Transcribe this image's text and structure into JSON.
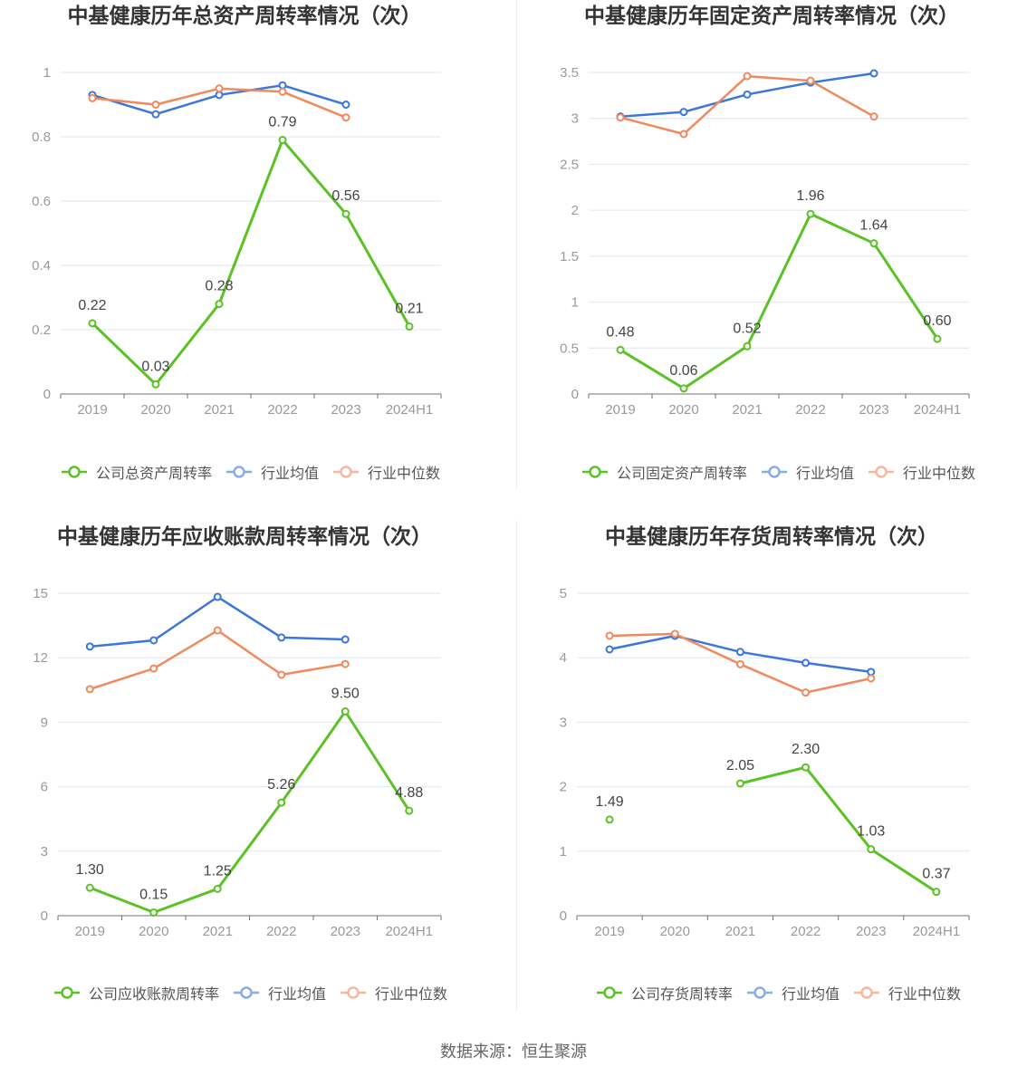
{
  "footer": {
    "source": "数据来源：恒生聚源"
  },
  "chart_data": [
    {
      "type": "line",
      "title": "中基健康历年总资产周转率情况（次）",
      "categories": [
        "2019",
        "2020",
        "2021",
        "2022",
        "2023",
        "2024H1"
      ],
      "ylim": [
        0,
        1
      ],
      "yticks": [
        "0",
        "0.2",
        "0.4",
        "0.6",
        "0.8",
        "1"
      ],
      "grid": true,
      "legend_position": "bottom",
      "series": [
        {
          "name": "公司总资产周转率",
          "color": "#5bc225",
          "values": [
            0.22,
            0.03,
            0.28,
            0.79,
            0.56,
            0.21
          ],
          "labels": [
            "0.22",
            "0.03",
            "0.28",
            "0.79",
            "0.56",
            "0.21"
          ]
        },
        {
          "name": "行业均值",
          "color": "#3c75dc",
          "values": [
            0.93,
            0.87,
            0.93,
            0.96,
            0.9,
            null
          ]
        },
        {
          "name": "行业中位数",
          "color": "#f0895c",
          "values": [
            0.92,
            0.9,
            0.95,
            0.94,
            0.86,
            null
          ]
        }
      ]
    },
    {
      "type": "line",
      "title": "中基健康历年固定资产周转率情况（次）",
      "categories": [
        "2019",
        "2020",
        "2021",
        "2022",
        "2023",
        "2024H1"
      ],
      "ylim": [
        0,
        3.5
      ],
      "yticks": [
        "0",
        "0.5",
        "1",
        "1.5",
        "2",
        "2.5",
        "3",
        "3.5"
      ],
      "grid": true,
      "legend_position": "bottom",
      "series": [
        {
          "name": "公司固定资产周转率",
          "color": "#5bc225",
          "values": [
            0.48,
            0.06,
            0.52,
            1.96,
            1.64,
            0.6
          ],
          "labels": [
            "0.48",
            "0.06",
            "0.52",
            "1.96",
            "1.64",
            "0.60"
          ]
        },
        {
          "name": "行业均值",
          "color": "#3c75dc",
          "values": [
            3.02,
            3.07,
            3.26,
            3.39,
            3.49,
            null
          ]
        },
        {
          "name": "行业中位数",
          "color": "#f0895c",
          "values": [
            3.01,
            2.83,
            3.46,
            3.41,
            3.02,
            null
          ]
        }
      ]
    },
    {
      "type": "line",
      "title": "中基健康历年应收账款周转率情况（次）",
      "categories": [
        "2019",
        "2020",
        "2021",
        "2022",
        "2023",
        "2024H1"
      ],
      "ylim": [
        0,
        15
      ],
      "yticks": [
        "0",
        "3",
        "6",
        "9",
        "12",
        "15"
      ],
      "grid": true,
      "legend_position": "bottom",
      "series": [
        {
          "name": "公司应收账款周转率",
          "color": "#5bc225",
          "values": [
            1.3,
            0.15,
            1.25,
            5.26,
            9.5,
            4.88
          ],
          "labels": [
            "1.30",
            "0.15",
            "1.25",
            "5.26",
            "9.50",
            "4.88"
          ]
        },
        {
          "name": "行业均值",
          "color": "#3c75dc",
          "values": [
            12.52,
            12.81,
            14.83,
            12.94,
            12.85,
            null
          ]
        },
        {
          "name": "行业中位数",
          "color": "#f0895c",
          "values": [
            10.54,
            11.5,
            13.27,
            11.21,
            11.71,
            null
          ]
        }
      ]
    },
    {
      "type": "line",
      "title": "中基健康历年存货周转率情况（次）",
      "categories": [
        "2019",
        "2020",
        "2021",
        "2022",
        "2023",
        "2024H1"
      ],
      "ylim": [
        0,
        5
      ],
      "yticks": [
        "0",
        "1",
        "2",
        "3",
        "4",
        "5"
      ],
      "grid": true,
      "legend_position": "bottom",
      "series": [
        {
          "name": "公司存货周转率",
          "color": "#5bc225",
          "values": [
            1.49,
            null,
            2.05,
            2.3,
            1.03,
            0.37
          ],
          "labels": [
            "1.49",
            null,
            "2.05",
            "2.30",
            "1.03",
            "0.37"
          ]
        },
        {
          "name": "行业均值",
          "color": "#3c75dc",
          "values": [
            4.13,
            4.34,
            4.09,
            3.92,
            3.78,
            null
          ]
        },
        {
          "name": "行业中位数",
          "color": "#f0895c",
          "values": [
            4.34,
            4.37,
            3.9,
            3.46,
            3.68,
            null
          ]
        }
      ]
    }
  ]
}
